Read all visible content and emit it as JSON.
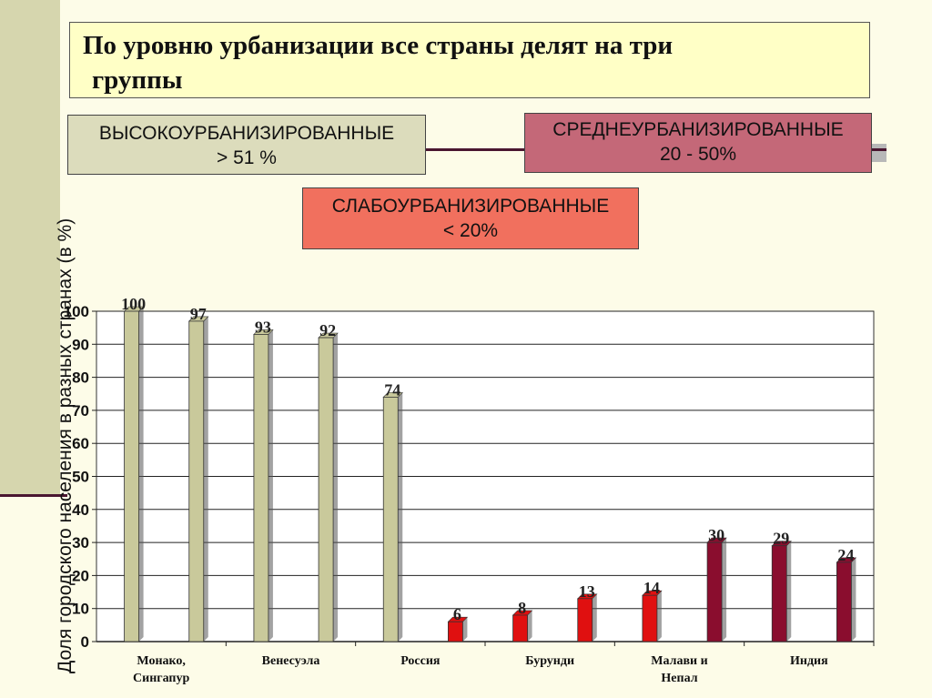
{
  "header": {
    "title_line1": "По уровню урбанизации все страны делят на три",
    "title_line2": "группы"
  },
  "categories_groups": {
    "high": {
      "label": "ВЫСОКОУРБАНИЗИРОВАННЫЕ",
      "range": "> 51 %",
      "color": "#dcdcbc"
    },
    "mid": {
      "label": "СРЕДНЕУРБАНИЗИРОВАННЫЕ",
      "range": "20 - 50%",
      "color": "#c46878"
    },
    "low": {
      "label": "СЛАБОУРБАНИЗИРОВАННЫЕ",
      "range": "< 20%",
      "color": "#f1705e"
    }
  },
  "chart_data": {
    "type": "bar",
    "ylabel": "Доля городского населения в разных странах (в %)",
    "xlabel": "",
    "ylim": [
      0,
      100
    ],
    "y_ticks": [
      0,
      10,
      20,
      30,
      40,
      50,
      60,
      70,
      80,
      90,
      100
    ],
    "grid": true,
    "x_tick_labels": [
      {
        "text": "Монако,\nСингапур"
      },
      {
        "text": "Венесуэла"
      },
      {
        "text": "Россия"
      },
      {
        "text": "Бурунди"
      },
      {
        "text": "Малави и\nНепал"
      },
      {
        "text": "Индия"
      }
    ],
    "values": [
      100,
      97,
      93,
      92,
      74,
      6,
      8,
      13,
      14,
      30,
      29,
      24
    ],
    "bar_colors": [
      "#c9c99b",
      "#c9c99b",
      "#c9c99b",
      "#c9c99b",
      "#c9c99b",
      "#e01010",
      "#e01010",
      "#e01010",
      "#e01010",
      "#8a0d2e",
      "#8a0d2e",
      "#8a0d2e"
    ]
  }
}
